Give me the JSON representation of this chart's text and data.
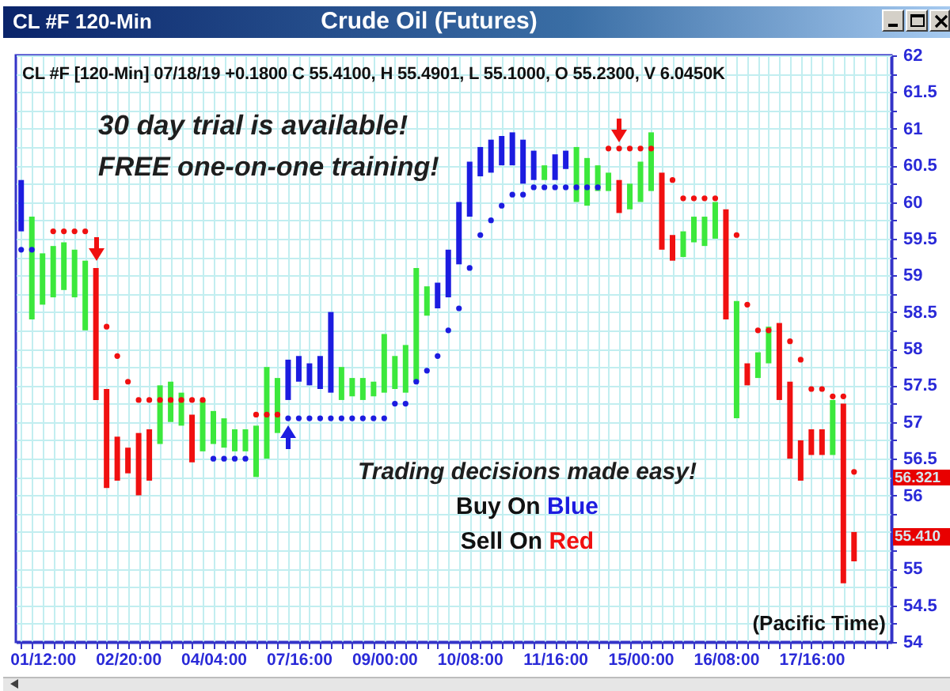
{
  "chart_data": {
    "type": "bar",
    "title": "Crude Oil (Futures)",
    "subtitle": "CL #F [120-Min] 07/18/19 +0.1800 C 55.4100, H 55.4901, L 55.1000, O 55.2300, V 6.0450K",
    "xlabel": "(Pacific Time)",
    "annotations": [
      "CL #F 120-Min",
      "30 day trial is available!",
      "FREE one-on-one training!",
      "Trading decisions made easy!",
      "Buy On Blue",
      "Sell On Red",
      "56.321",
      "55.410"
    ],
    "categories": [
      null,
      null,
      "01/12:00",
      null,
      null,
      null,
      null,
      null,
      null,
      null,
      "02/20:00",
      null,
      null,
      null,
      null,
      null,
      null,
      null,
      "04/04:00",
      null,
      null,
      null,
      null,
      null,
      null,
      null,
      "07/16:00",
      null,
      null,
      null,
      null,
      null,
      null,
      null,
      "09/00:00",
      null,
      null,
      null,
      null,
      null,
      null,
      null,
      "10/08:00",
      null,
      null,
      null,
      null,
      null,
      null,
      null,
      "11/16:00",
      null,
      null,
      null,
      null,
      null,
      null,
      null,
      "15/00:00",
      null,
      null,
      null,
      null,
      null,
      null,
      null,
      "16/08:00",
      null,
      null,
      null,
      null,
      null,
      null,
      null,
      "17/16:00",
      null,
      null,
      null,
      null,
      null,
      null,
      null
    ],
    "series": [
      {
        "base": [
          59.6,
          58.4,
          58.6,
          58.7,
          58.8,
          58.7,
          58.25,
          57.3,
          56.1,
          56.2,
          56.3,
          56.0,
          56.2,
          56.7,
          57.0,
          56.95,
          56.45,
          56.6,
          56.7,
          56.65,
          56.6,
          56.6,
          56.25,
          56.5,
          56.85,
          57.3,
          57.55,
          57.5,
          57.45,
          57.4,
          57.3,
          57.35,
          57.3,
          57.35,
          57.4,
          57.45,
          57.4,
          57.55,
          58.45,
          58.55,
          58.7,
          59.15,
          59.8,
          60.35,
          60.4,
          60.5,
          60.5,
          60.25,
          60.3,
          60.3,
          60.3,
          60.45,
          60.0,
          59.95,
          60.15,
          60.15,
          59.85,
          59.9,
          60.0,
          60.15,
          59.35,
          59.2,
          59.25,
          59.45,
          59.4,
          59.5,
          58.4,
          57.05,
          57.5,
          57.6,
          57.8,
          57.3,
          56.5,
          56.2,
          56.55,
          56.55,
          56.55,
          54.8,
          55.1,
          null,
          null,
          null
        ],
        "values": [
          0.7,
          1.4,
          0.7,
          0.7,
          0.65,
          0.65,
          0.95,
          1.8,
          1.35,
          0.6,
          0.35,
          0.85,
          0.7,
          0.8,
          0.55,
          0.45,
          0.65,
          0.7,
          0.45,
          0.4,
          0.3,
          0.3,
          0.7,
          1.25,
          0.75,
          0.55,
          0.35,
          0.3,
          0.45,
          1.1,
          0.45,
          0.25,
          0.3,
          0.2,
          0.8,
          0.45,
          0.65,
          1.55,
          0.4,
          0.35,
          0.65,
          0.85,
          0.75,
          0.4,
          0.45,
          0.4,
          0.45,
          0.6,
          0.4,
          0.2,
          0.35,
          0.25,
          0.75,
          0.65,
          0.35,
          0.25,
          0.45,
          0.35,
          0.55,
          0.8,
          1.05,
          0.35,
          0.35,
          0.35,
          0.4,
          0.5,
          1.5,
          1.6,
          0.3,
          0.35,
          0.5,
          1.05,
          1.05,
          0.55,
          0.35,
          0.35,
          0.75,
          2.45,
          0.4,
          null,
          null,
          null
        ],
        "colors": [
          "#1c1ce0",
          "#3ce83c",
          "#3ce83c",
          "#3ce83c",
          "#3ce83c",
          "#3ce83c",
          "#3ce83c",
          "#f01010",
          "#f01010",
          "#f01010",
          "#f01010",
          "#f01010",
          "#f01010",
          "#3ce83c",
          "#3ce83c",
          "#3ce83c",
          "#f01010",
          "#3ce83c",
          "#3ce83c",
          "#3ce83c",
          "#3ce83c",
          "#3ce83c",
          "#3ce83c",
          "#3ce83c",
          "#3ce83c",
          "#1c1ce0",
          "#1c1ce0",
          "#1c1ce0",
          "#1c1ce0",
          "#1c1ce0",
          "#3ce83c",
          "#3ce83c",
          "#3ce83c",
          "#3ce83c",
          "#3ce83c",
          "#3ce83c",
          "#3ce83c",
          "#3ce83c",
          "#3ce83c",
          "#1c1ce0",
          "#1c1ce0",
          "#1c1ce0",
          "#1c1ce0",
          "#1c1ce0",
          "#1c1ce0",
          "#1c1ce0",
          "#1c1ce0",
          "#1c1ce0",
          "#1c1ce0",
          "#3ce83c",
          "#1c1ce0",
          "#1c1ce0",
          "#3ce83c",
          "#3ce83c",
          "#3ce83c",
          "#3ce83c",
          "#f01010",
          "#3ce83c",
          "#3ce83c",
          "#3ce83c",
          "#f01010",
          "#f01010",
          "#3ce83c",
          "#3ce83c",
          "#3ce83c",
          "#3ce83c",
          "#f01010",
          "#3ce83c",
          "#f01010",
          "#3ce83c",
          "#3ce83c",
          "#f01010",
          "#f01010",
          "#f01010",
          "#f01010",
          "#f01010",
          "#3ce83c",
          "#f01010",
          "#f01010",
          null,
          null,
          null
        ]
      },
      {
        "type": "scatter",
        "color": "#f01010",
        "values": [
          null,
          null,
          null,
          59.6,
          59.6,
          59.6,
          59.6,
          null,
          58.3,
          57.9,
          57.55,
          57.3,
          57.3,
          57.3,
          57.3,
          57.3,
          57.3,
          57.3,
          null,
          null,
          null,
          null,
          57.1,
          57.1,
          57.1,
          null,
          null,
          null,
          null,
          null,
          null,
          null,
          null,
          null,
          null,
          null,
          null,
          null,
          null,
          null,
          null,
          null,
          null,
          null,
          null,
          null,
          null,
          null,
          null,
          null,
          null,
          null,
          null,
          null,
          null,
          60.73,
          60.73,
          60.73,
          60.73,
          60.73,
          null,
          60.3,
          60.05,
          60.05,
          60.05,
          60.05,
          null,
          59.55,
          58.6,
          58.25,
          58.25,
          null,
          58.1,
          57.85,
          57.45,
          57.45,
          57.35,
          57.35,
          56.32,
          null,
          null,
          null
        ]
      },
      {
        "type": "scatter",
        "color": "#1c1ce0",
        "values": [
          59.35,
          59.35,
          null,
          null,
          null,
          null,
          null,
          null,
          null,
          null,
          null,
          null,
          null,
          null,
          null,
          null,
          null,
          null,
          56.5,
          56.5,
          56.5,
          56.5,
          null,
          null,
          null,
          57.05,
          57.05,
          57.05,
          57.05,
          57.05,
          57.05,
          57.05,
          57.05,
          57.05,
          57.05,
          57.25,
          57.25,
          57.55,
          57.7,
          57.9,
          58.25,
          58.55,
          59.1,
          59.55,
          59.75,
          59.95,
          60.1,
          60.1,
          60.2,
          60.2,
          60.2,
          60.2,
          60.2,
          60.2,
          60.2,
          null,
          null,
          null,
          null,
          null,
          null,
          null,
          null,
          null,
          null,
          null,
          null,
          null,
          null,
          null,
          null,
          null,
          null,
          null,
          null,
          null,
          null,
          null,
          null,
          null,
          null,
          null
        ]
      }
    ],
    "ylim": [
      54,
      62
    ],
    "yticks": [
      54,
      {
        "value": 54.25,
        "label": null
      },
      54.5,
      {
        "value": 54.75,
        "label": null
      },
      55,
      {
        "value": 55.25,
        "label": null
      },
      {
        "value": 55.5,
        "label": null
      },
      {
        "value": 55.75,
        "label": null
      },
      56,
      {
        "value": 56.25,
        "label": null
      },
      56.5,
      {
        "value": 56.75,
        "label": null
      },
      57,
      {
        "value": 57.25,
        "label": null
      },
      57.5,
      {
        "value": 57.75,
        "label": null
      },
      58,
      {
        "value": 58.25,
        "label": null
      },
      58.5,
      {
        "value": 58.75,
        "label": null
      },
      59,
      {
        "value": 59.25,
        "label": null
      },
      59.5,
      {
        "value": 59.75,
        "label": null
      },
      60,
      {
        "value": 60.25,
        "label": null
      },
      60.5,
      {
        "value": 60.75,
        "label": null
      },
      61,
      {
        "value": 61.25,
        "label": null
      },
      61.5,
      {
        "value": 61.75,
        "label": null
      },
      62
    ],
    "grid": true,
    "marker": "circle"
  }
}
